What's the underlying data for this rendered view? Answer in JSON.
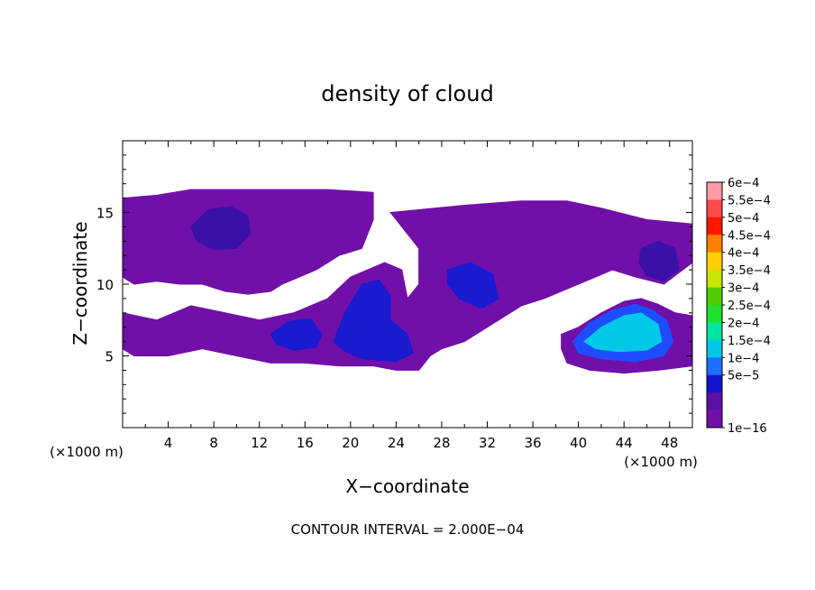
{
  "chart_data": {
    "type": "heatmap",
    "title": "density of cloud",
    "xlabel": "X−coordinate",
    "ylabel": "Z−coordinate",
    "x_unit": "(×1000 m)",
    "footer": "CONTOUR INTERVAL = 2.000E−04",
    "xlim": [
      0,
      50
    ],
    "ylim": [
      0,
      20
    ],
    "x_ticks": [
      4,
      8,
      12,
      16,
      20,
      24,
      28,
      32,
      36,
      40,
      44,
      48
    ],
    "y_ticks": [
      5,
      10,
      15
    ],
    "colorbar": {
      "labels": [
        "6e−4",
        "5.5e−4",
        "5e−4",
        "4.5e−4",
        "4e−4",
        "3.5e−4",
        "3e−4",
        "2.5e−4",
        "2e−4",
        "1.5e−4",
        "1e−4",
        "5e−5",
        "1e−16"
      ],
      "colors": [
        "#ff9aa8",
        "#ff4a4a",
        "#ff1800",
        "#ff8000",
        "#ffd000",
        "#c8e600",
        "#52cc00",
        "#20e030",
        "#00e6a0",
        "#00c8e6",
        "#1e6eff",
        "#1414cc",
        "#5c10a8",
        "#7010a8"
      ]
    },
    "regions": [
      {
        "name": "main cloud layer west",
        "level": 1,
        "color": "#7010a8",
        "outline": [
          [
            0,
            16
          ],
          [
            3,
            16.2
          ],
          [
            6,
            16.6
          ],
          [
            12,
            16.6
          ],
          [
            18,
            16.6
          ],
          [
            22,
            16.4
          ],
          [
            22,
            14.5
          ],
          [
            21,
            12.5
          ],
          [
            19,
            12
          ],
          [
            17,
            11
          ],
          [
            14,
            10
          ],
          [
            13,
            9.5
          ],
          [
            11,
            9.3
          ],
          [
            9,
            9.5
          ],
          [
            7,
            10
          ],
          [
            5,
            10
          ],
          [
            3,
            10.2
          ],
          [
            1,
            10
          ],
          [
            0,
            10.5
          ]
        ]
      },
      {
        "name": "mid layer",
        "level": 1,
        "color": "#7010a8",
        "outline": [
          [
            0,
            8
          ],
          [
            3,
            7.5
          ],
          [
            6,
            8.5
          ],
          [
            9,
            8
          ],
          [
            12,
            7.5
          ],
          [
            15,
            8
          ],
          [
            18,
            9
          ],
          [
            20,
            10.5
          ],
          [
            23,
            11.5
          ],
          [
            24.5,
            11
          ],
          [
            25,
            9
          ],
          [
            26,
            10
          ],
          [
            26,
            12.5
          ],
          [
            25,
            13.5
          ],
          [
            24,
            14.5
          ],
          [
            23.5,
            15
          ],
          [
            30,
            15.5
          ],
          [
            35,
            15.8
          ],
          [
            39,
            15.8
          ],
          [
            42,
            15.3
          ],
          [
            46,
            14.5
          ],
          [
            50,
            14.2
          ],
          [
            50,
            11.5
          ],
          [
            47.5,
            10
          ],
          [
            45,
            10.5
          ],
          [
            43,
            11
          ],
          [
            40,
            10
          ],
          [
            37,
            9
          ],
          [
            35,
            8.5
          ],
          [
            33,
            7.5
          ],
          [
            30,
            6
          ],
          [
            28,
            5.5
          ],
          [
            27,
            5
          ],
          [
            26,
            4
          ],
          [
            24,
            4
          ],
          [
            22,
            4.3
          ],
          [
            19,
            4.3
          ],
          [
            16,
            4.5
          ],
          [
            13,
            4.5
          ],
          [
            10,
            5
          ],
          [
            7,
            5.5
          ],
          [
            4,
            5
          ],
          [
            1,
            5
          ],
          [
            0,
            5.5
          ]
        ]
      },
      {
        "name": "lower east cloud",
        "level": 1,
        "color": "#7010a8",
        "outline": [
          [
            38.5,
            6.5
          ],
          [
            40,
            7
          ],
          [
            42,
            8
          ],
          [
            44,
            8.8
          ],
          [
            45.5,
            9
          ],
          [
            47,
            8.6
          ],
          [
            48.5,
            8
          ],
          [
            50,
            7.8
          ],
          [
            50,
            4.3
          ],
          [
            47,
            4
          ],
          [
            44,
            3.8
          ],
          [
            41,
            4
          ],
          [
            39,
            4.5
          ],
          [
            38.5,
            5.5
          ]
        ]
      },
      {
        "name": "upper east cell",
        "level": 2,
        "color": "#3a10a8",
        "outline": [
          [
            45.5,
            12.5
          ],
          [
            47,
            13
          ],
          [
            48.5,
            12.5
          ],
          [
            48.8,
            11
          ],
          [
            47.5,
            10.2
          ],
          [
            46,
            10.6
          ],
          [
            45.3,
            11.5
          ]
        ]
      },
      {
        "name": "upper west cell",
        "level": 2,
        "color": "#3a10a8",
        "outline": [
          [
            6,
            14
          ],
          [
            7.5,
            15.2
          ],
          [
            9.5,
            15.4
          ],
          [
            11,
            14.8
          ],
          [
            11.2,
            13.5
          ],
          [
            10,
            12.5
          ],
          [
            8,
            12.4
          ],
          [
            6.5,
            13
          ]
        ]
      },
      {
        "name": "central core west",
        "level": 3,
        "color": "#1a1ad0",
        "outline": [
          [
            13,
            6.5
          ],
          [
            14.5,
            7.4
          ],
          [
            16.5,
            7.6
          ],
          [
            17.5,
            6.5
          ],
          [
            17,
            5.6
          ],
          [
            15,
            5.4
          ],
          [
            13.5,
            5.8
          ]
        ]
      },
      {
        "name": "central core",
        "level": 3,
        "color": "#1a1ad0",
        "outline": [
          [
            18.5,
            6
          ],
          [
            19.5,
            8
          ],
          [
            21,
            10
          ],
          [
            22.5,
            10.3
          ],
          [
            23.5,
            9.2
          ],
          [
            23.5,
            7.5
          ],
          [
            25,
            6.5
          ],
          [
            25.5,
            5.2
          ],
          [
            24,
            4.6
          ],
          [
            21,
            4.8
          ],
          [
            19.5,
            5.3
          ]
        ]
      },
      {
        "name": "east-central core",
        "level": 3,
        "color": "#1a1ad0",
        "outline": [
          [
            28.5,
            11
          ],
          [
            30.5,
            11.5
          ],
          [
            32.5,
            10.7
          ],
          [
            33,
            9
          ],
          [
            31.5,
            8.3
          ],
          [
            29.5,
            9
          ],
          [
            28.5,
            10
          ]
        ]
      },
      {
        "name": "east cloud inner",
        "level": 3,
        "color": "#1e4cff",
        "outline": [
          [
            39.5,
            6
          ],
          [
            41,
            7.3
          ],
          [
            43,
            8.2
          ],
          [
            45,
            8.6
          ],
          [
            46.5,
            8.2
          ],
          [
            47.8,
            7.4
          ],
          [
            48.3,
            6
          ],
          [
            47.5,
            5
          ],
          [
            45,
            4.6
          ],
          [
            42,
            4.8
          ],
          [
            40,
            5.2
          ]
        ]
      },
      {
        "name": "east cloud peak",
        "level": 4,
        "color": "#00c8e6",
        "outline": [
          [
            40.5,
            6
          ],
          [
            42,
            7
          ],
          [
            44,
            7.8
          ],
          [
            45.5,
            8
          ],
          [
            47,
            7.2
          ],
          [
            47.3,
            6
          ],
          [
            46,
            5.4
          ],
          [
            43.5,
            5.3
          ],
          [
            41.5,
            5.5
          ]
        ]
      }
    ]
  }
}
